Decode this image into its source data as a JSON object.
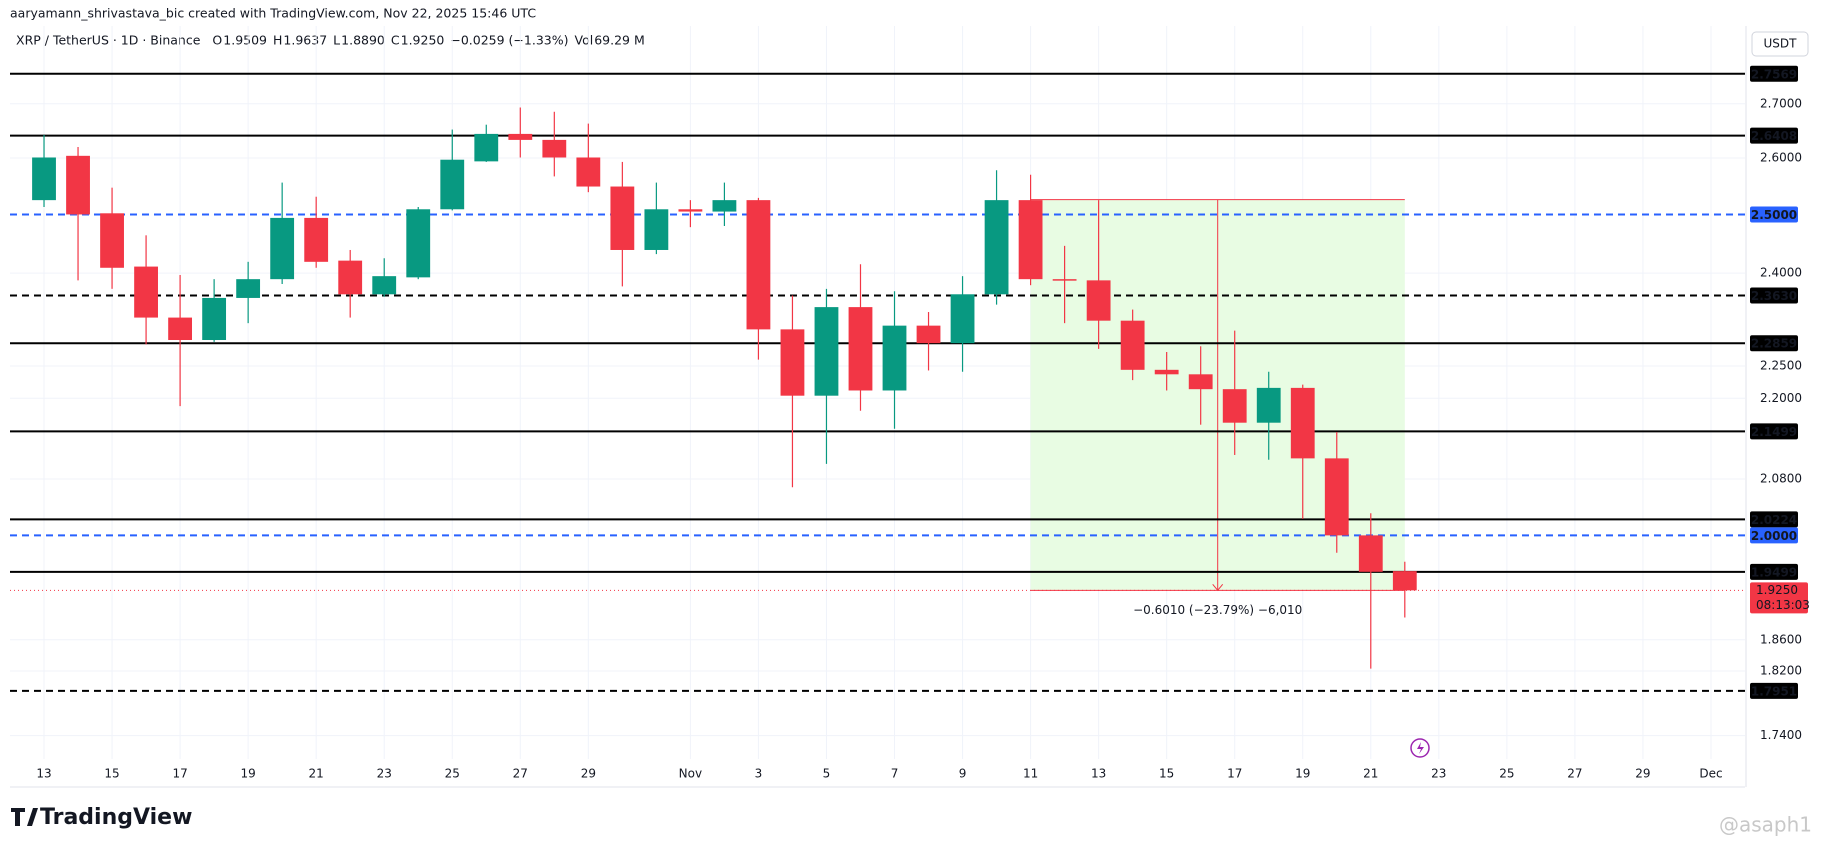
{
  "header": {
    "credit": "aaryamann_shrivastava_bic created with TradingView.com, Nov 22, 2025 15:46 UTC",
    "symbol": "XRP / TetherUS · 1D · Binance",
    "o_label": "O",
    "o": "1.9509",
    "h_label": "H",
    "h": "1.9637",
    "l_label": "L",
    "l": "1.8890",
    "c_label": "C",
    "c": "1.9250",
    "change": "−0.0259 (−1.33%)",
    "vol_label": "Vol",
    "vol": "69.29 M",
    "currency": "USDT"
  },
  "logo": "TradingView",
  "watermark": "@asaph1",
  "chart_data": {
    "type": "candlestick",
    "log_scale": true,
    "grid": true,
    "up_color": "#089981",
    "down_color": "#f23645",
    "x": [
      "2025-10-13",
      "2025-10-14",
      "2025-10-15",
      "2025-10-16",
      "2025-10-17",
      "2025-10-18",
      "2025-10-19",
      "2025-10-20",
      "2025-10-21",
      "2025-10-22",
      "2025-10-23",
      "2025-10-24",
      "2025-10-25",
      "2025-10-26",
      "2025-10-27",
      "2025-10-28",
      "2025-10-29",
      "2025-10-30",
      "2025-10-31",
      "2025-11-01",
      "2025-11-02",
      "2025-11-03",
      "2025-11-04",
      "2025-11-05",
      "2025-11-06",
      "2025-11-07",
      "2025-11-08",
      "2025-11-09",
      "2025-11-10",
      "2025-11-11",
      "2025-11-12",
      "2025-11-13",
      "2025-11-14",
      "2025-11-15",
      "2025-11-16",
      "2025-11-17",
      "2025-11-18",
      "2025-11-19",
      "2025-11-20",
      "2025-11-21",
      "2025-11-22"
    ],
    "open": [
      2.525,
      2.604,
      2.502,
      2.411,
      2.327,
      2.291,
      2.359,
      2.39,
      2.494,
      2.421,
      2.365,
      2.393,
      2.509,
      2.594,
      2.644,
      2.633,
      2.601,
      2.549,
      2.439,
      2.509,
      2.505,
      2.525,
      2.308,
      2.204,
      2.344,
      2.212,
      2.314,
      2.286,
      2.365,
      2.525,
      2.39,
      2.388,
      2.322,
      2.244,
      2.237,
      2.214,
      2.163,
      2.216,
      2.11,
      2.0,
      1.9509
    ],
    "high": [
      2.642,
      2.62,
      2.547,
      2.464,
      2.397,
      2.39,
      2.419,
      2.556,
      2.531,
      2.439,
      2.425,
      2.513,
      2.652,
      2.661,
      2.693,
      2.685,
      2.663,
      2.593,
      2.556,
      2.525,
      2.556,
      2.529,
      2.363,
      2.374,
      2.415,
      2.37,
      2.336,
      2.395,
      2.578,
      2.57,
      2.446,
      2.525,
      2.34,
      2.272,
      2.281,
      2.306,
      2.241,
      2.221,
      2.149,
      2.031,
      1.9637
    ],
    "low": [
      2.513,
      2.388,
      2.374,
      2.284,
      2.188,
      2.288,
      2.318,
      2.382,
      2.409,
      2.327,
      2.361,
      2.39,
      2.507,
      2.593,
      2.601,
      2.567,
      2.539,
      2.378,
      2.432,
      2.478,
      2.48,
      2.26,
      2.068,
      2.102,
      2.181,
      2.154,
      2.243,
      2.241,
      2.348,
      2.38,
      2.318,
      2.277,
      2.228,
      2.212,
      2.16,
      2.115,
      2.108,
      2.023,
      1.976,
      1.823,
      1.889
    ],
    "close": [
      2.601,
      2.5,
      2.409,
      2.327,
      2.291,
      2.359,
      2.39,
      2.494,
      2.419,
      2.365,
      2.395,
      2.509,
      2.597,
      2.644,
      2.633,
      2.601,
      2.549,
      2.439,
      2.509,
      2.505,
      2.525,
      2.308,
      2.204,
      2.344,
      2.212,
      2.314,
      2.286,
      2.365,
      2.525,
      2.39,
      2.388,
      2.322,
      2.244,
      2.237,
      2.214,
      2.163,
      2.216,
      2.11,
      2.0,
      1.95,
      1.925
    ],
    "xlim": [
      "2025-10-12",
      "2025-12-02"
    ],
    "xticks": [
      {
        "value": "2025-10-13",
        "label": "13"
      },
      {
        "value": "2025-10-15",
        "label": "15"
      },
      {
        "value": "2025-10-17",
        "label": "17"
      },
      {
        "value": "2025-10-19",
        "label": "19"
      },
      {
        "value": "2025-10-21",
        "label": "21"
      },
      {
        "value": "2025-10-23",
        "label": "23"
      },
      {
        "value": "2025-10-25",
        "label": "25"
      },
      {
        "value": "2025-10-27",
        "label": "27"
      },
      {
        "value": "2025-10-29",
        "label": "29"
      },
      {
        "value": "2025-11-01",
        "label": "Nov"
      },
      {
        "value": "2025-11-03",
        "label": "3"
      },
      {
        "value": "2025-11-05",
        "label": "5"
      },
      {
        "value": "2025-11-07",
        "label": "7"
      },
      {
        "value": "2025-11-09",
        "label": "9"
      },
      {
        "value": "2025-11-11",
        "label": "11"
      },
      {
        "value": "2025-11-13",
        "label": "13"
      },
      {
        "value": "2025-11-15",
        "label": "15"
      },
      {
        "value": "2025-11-17",
        "label": "17"
      },
      {
        "value": "2025-11-19",
        "label": "19"
      },
      {
        "value": "2025-11-21",
        "label": "21"
      },
      {
        "value": "2025-11-23",
        "label": "23"
      },
      {
        "value": "2025-11-25",
        "label": "25"
      },
      {
        "value": "2025-11-27",
        "label": "27"
      },
      {
        "value": "2025-11-29",
        "label": "29"
      },
      {
        "value": "2025-12-01",
        "label": "Dec"
      }
    ],
    "ylim": [
      1.712,
      2.85
    ],
    "yticks": [
      {
        "value": 2.7,
        "label": "2.7000"
      },
      {
        "value": 2.6,
        "label": "2.6000"
      },
      {
        "value": 2.4,
        "label": "2.4000"
      },
      {
        "value": 2.25,
        "label": "2.2500"
      },
      {
        "value": 2.2,
        "label": "2.2000"
      },
      {
        "value": 2.08,
        "label": "2.0800"
      },
      {
        "value": 1.86,
        "label": "1.8600"
      },
      {
        "value": 1.82,
        "label": "1.8200"
      },
      {
        "value": 1.74,
        "label": "1.7400"
      }
    ],
    "levels": [
      {
        "value": 2.7569,
        "label": "2.7569",
        "style": "solid",
        "color": "#000000"
      },
      {
        "value": 2.6408,
        "label": "2.6408",
        "style": "solid",
        "color": "#000000"
      },
      {
        "value": 2.5,
        "label": "2.5000",
        "style": "dashed",
        "color": "#2962ff"
      },
      {
        "value": 2.363,
        "label": "2.3630",
        "style": "dashed",
        "color": "#000000"
      },
      {
        "value": 2.2859,
        "label": "2.2859",
        "style": "solid",
        "color": "#000000"
      },
      {
        "value": 2.1499,
        "label": "2.1499",
        "style": "solid",
        "color": "#000000"
      },
      {
        "value": 2.0224,
        "label": "2.0224",
        "style": "solid",
        "color": "#000000"
      },
      {
        "value": 2.0,
        "label": "2.0000",
        "style": "dashed",
        "color": "#2962ff"
      },
      {
        "value": 1.9499,
        "label": "1.9499",
        "style": "solid",
        "color": "#000000"
      },
      {
        "value": 1.7951,
        "label": "1.7951",
        "style": "dashed",
        "color": "#000000"
      }
    ],
    "last": {
      "value": 1.925,
      "label": "1.9250",
      "countdown": "08:13:03",
      "color": "#f23645"
    },
    "measure": {
      "from": 2.526,
      "to": 1.925,
      "x_from": "2025-11-11",
      "x_to": "2025-11-22",
      "label": "−0.6010 (−23.79%) −6,010",
      "color": "#f23645",
      "fill": "#e8fce3"
    }
  }
}
